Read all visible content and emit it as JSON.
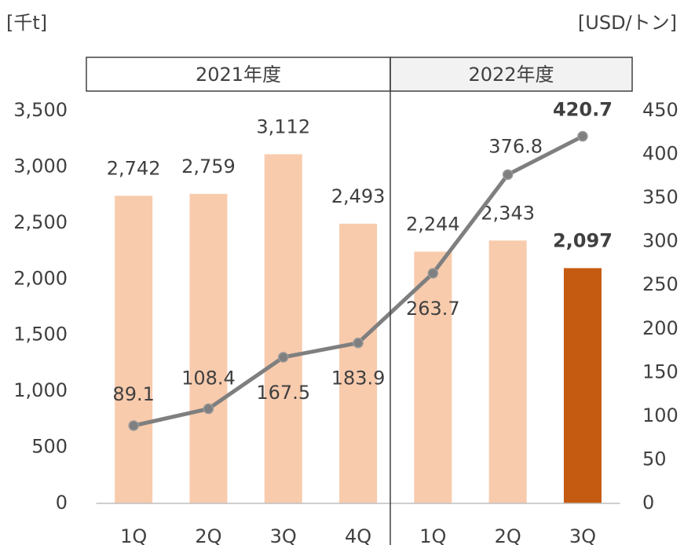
{
  "chart_data": {
    "type": "bar_line",
    "y_unit": "[千t]",
    "y2_unit": "[USD/トン]",
    "groups": [
      "2021年度",
      "2022年度"
    ],
    "categories": [
      "1Q",
      "2Q",
      "3Q",
      "4Q",
      "1Q",
      "2Q",
      "3Q"
    ],
    "series": [
      {
        "type": "bar",
        "colors": [
          "#f8cbad",
          "#f8cbad",
          "#f8cbad",
          "#f8cbad",
          "#f8cbad",
          "#f8cbad",
          "#c55a11"
        ],
        "values": [
          2742,
          2759,
          3112,
          2493,
          2244,
          2343,
          2097
        ],
        "value_labels": [
          "2,742",
          "2,759",
          "3,112",
          "2,493",
          "2,244",
          "2,343",
          "2,097"
        ]
      },
      {
        "type": "line",
        "axis": "y2",
        "color": "#7f7f7f",
        "values": [
          89.1,
          108.4,
          167.5,
          183.9,
          263.7,
          376.8,
          420.7
        ]
      }
    ],
    "ylim": [
      0,
      3500
    ],
    "yticks": [
      0,
      500,
      {
        "value": 1000,
        "label": "1,000"
      },
      {
        "value": 1500,
        "label": "1,500"
      },
      {
        "value": 2000,
        "label": "2,000"
      },
      {
        "value": 2500,
        "label": "2,500"
      },
      {
        "value": 3000,
        "label": "3,000"
      },
      {
        "value": 3500,
        "label": "3,500"
      }
    ],
    "y2lim": [
      0,
      450
    ],
    "y2ticks": [
      0,
      50,
      100,
      150,
      200,
      250,
      300,
      350,
      400,
      450
    ]
  }
}
